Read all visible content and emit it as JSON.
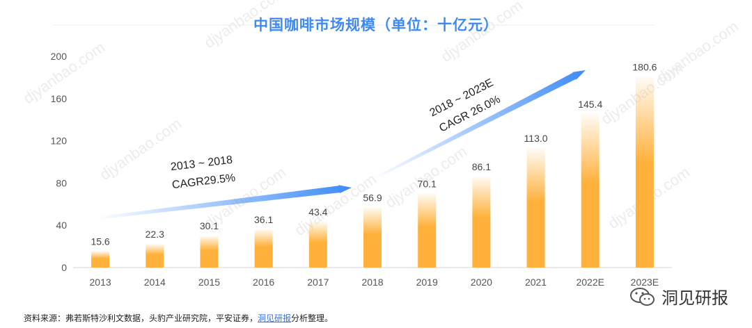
{
  "chart_data": {
    "type": "bar",
    "title": "中国咖啡市场规模（单位：十亿元）",
    "categories": [
      "2013",
      "2014",
      "2015",
      "2016",
      "2017",
      "2018",
      "2019",
      "2020",
      "2021",
      "2022E",
      "2023E"
    ],
    "values": [
      15.6,
      22.3,
      30.1,
      36.1,
      43.4,
      56.9,
      70.1,
      86.1,
      113.0,
      145.4,
      180.6
    ],
    "value_labels": [
      "15.6",
      "22.3",
      "30.1",
      "36.1",
      "43.4",
      "56.9",
      "70.1",
      "86.1",
      "113.0",
      "145.4",
      "180.6"
    ],
    "ylim": [
      0,
      200
    ],
    "yticks": [
      0,
      40,
      80,
      120,
      160,
      200
    ],
    "xlabel": "",
    "ylabel": "",
    "grid": false,
    "bar_color": "#ffb13b",
    "accent_color": "#3d8af7",
    "annotations": [
      {
        "line1": "2013 ~ 2018",
        "line2": "CAGR29.5%",
        "from_category": "2013",
        "to_category": "2018"
      },
      {
        "line1": "2018 ~ 2023E",
        "line2": "CAGR 26.0%",
        "from_category": "2018",
        "to_category": "2023E"
      }
    ]
  },
  "watermark": "djyanbao.com",
  "footer": {
    "source_prefix": "资料来源：弗若斯特沙利文数据，头豹产业研究院，平安证券，",
    "source_link": "洞见研报",
    "source_suffix": "分析整理。",
    "brand_name": "洞见研报",
    "brand_icon": "wechat-icon"
  }
}
